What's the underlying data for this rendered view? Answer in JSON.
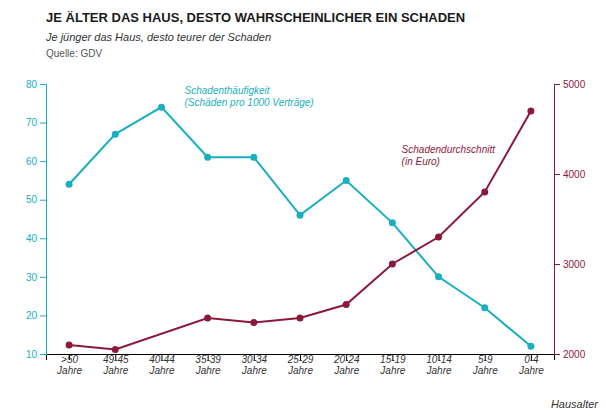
{
  "chart_data": {
    "type": "line",
    "title": "JE ÄLTER DAS HAUS, DESTO WAHRSCHEINLICHER EIN SCHADEN",
    "subtitle": "Je jünger das Haus, desto teurer der Schaden",
    "source": "Quelle: GDV",
    "xlabel": "Hausalter",
    "categories": [
      ">50\nJahre",
      "49-45\nJahre",
      "40-44\nJahre",
      "35-39\nJahre",
      "30-34\nJahre",
      "25-29\nJahre",
      "20-24\nJahre",
      "15-19\nJahre",
      "10-14\nJahre",
      "5-9\nJahre",
      "0-4\nJahre"
    ],
    "series": [
      {
        "name": "Schadenthäufigkeit\n(Schäden pro 1000 Verträge)",
        "color": "#1AAFBE",
        "marker": "circle",
        "values": [
          54,
          67,
          74,
          61,
          61,
          46,
          55,
          44,
          30,
          22,
          12
        ]
      },
      {
        "name": "Schadendurchschnitt\n(in Euro)",
        "color": "#8B1A3A",
        "marker": "circle",
        "axis": "y2",
        "x": [
          ">50\nJahre",
          "49-45\nJahre",
          "35-39\nJahre",
          "30-34\nJahre",
          "25-29\nJahre",
          "20-24\nJahre",
          "15-19\nJahre",
          "10-14\nJahre",
          "5-9\nJahre",
          "0-4\nJahre"
        ],
        "values": [
          2100,
          2050,
          2400,
          2350,
          2400,
          2550,
          3000,
          3300,
          3800,
          4700
        ]
      }
    ],
    "ylim": [
      10,
      80
    ],
    "yticks": [
      10,
      20,
      30,
      40,
      50,
      60,
      70,
      80
    ],
    "y2lim": [
      2000,
      5000
    ],
    "y2ticks": [
      2000,
      3000,
      4000,
      5000
    ],
    "grid": false
  }
}
